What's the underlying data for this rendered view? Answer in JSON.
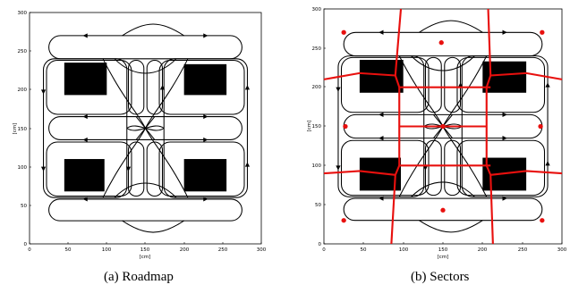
{
  "figure": {
    "panels": [
      {
        "caption": "(a) Roadmap",
        "xticks": [
          "0",
          "50",
          "100",
          "150",
          "200",
          "250",
          "300"
        ],
        "yticks": [
          "0",
          "50",
          "100",
          "150",
          "200",
          "250",
          "300"
        ],
        "xlabel": "[cm]",
        "ylabel": "[cm]"
      },
      {
        "caption": "(b) Sectors",
        "xticks": [
          "0",
          "50",
          "100",
          "150",
          "200",
          "250",
          "300"
        ],
        "yticks": [
          "0",
          "50",
          "100",
          "150",
          "200",
          "250",
          "300"
        ],
        "xlabel": "[cm]",
        "ylabel": "[cm]"
      }
    ]
  },
  "colors": {
    "obstacle": "#000000",
    "path": "#000000",
    "sector": "#e8100e"
  }
}
